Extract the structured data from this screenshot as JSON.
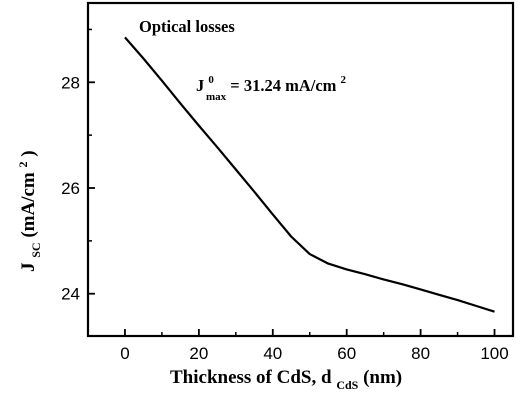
{
  "chart_data": {
    "type": "line",
    "xlabel": {
      "main": "Thickness of CdS, d",
      "sub": "CdS",
      "unit": " (nm)"
    },
    "ylabel": {
      "main": "J",
      "sub": "SC",
      "unit": "(mA/cm",
      "sup": "2",
      "close": ")"
    },
    "xlim": [
      -10,
      105
    ],
    "ylim": [
      23.2,
      29.5
    ],
    "xticks": [
      0,
      20,
      40,
      60,
      80,
      100
    ],
    "yticks": [
      24,
      26,
      28
    ],
    "grid": false,
    "series": [
      {
        "x": [
          0,
          5,
          10,
          15,
          20,
          25,
          30,
          35,
          40,
          45,
          50,
          55,
          60,
          65,
          70,
          75,
          80,
          85,
          90,
          95,
          100
        ],
        "y": [
          28.85,
          28.45,
          28.03,
          27.6,
          27.18,
          26.77,
          26.35,
          25.93,
          25.5,
          25.08,
          24.75,
          24.57,
          24.46,
          24.37,
          24.27,
          24.18,
          24.08,
          23.98,
          23.88,
          23.77,
          23.66
        ]
      }
    ],
    "annotations": {
      "title": "Optical losses",
      "formula": {
        "main": "J",
        "sup": "0",
        "sub": "max",
        "value": " = 31.24 mA/cm",
        "unit_sup": "2"
      }
    }
  }
}
